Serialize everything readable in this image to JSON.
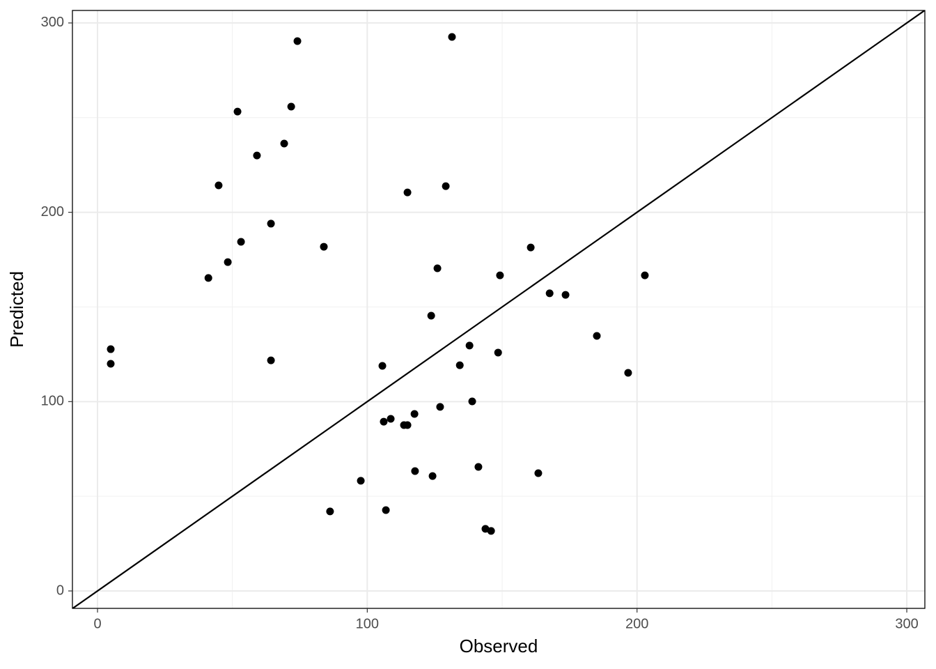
{
  "chart_data": {
    "type": "scatter",
    "x_label": "Observed",
    "y_label": "Predicted",
    "xlim": [
      -9.3,
      306.7
    ],
    "ylim": [
      -9.2,
      306.6
    ],
    "xticks": [
      0,
      100,
      200,
      300
    ],
    "yticks": [
      0,
      100,
      200,
      300
    ],
    "xminor": [
      50,
      150,
      250
    ],
    "yminor": [
      50,
      150,
      250
    ],
    "grid": true,
    "abline": {
      "slope": 1,
      "intercept": 0
    },
    "series": [
      {
        "color": "#000000",
        "x": [
          4.9,
          4.9,
          41.1,
          44.9,
          48.3,
          51.9,
          53.2,
          59.1,
          64.3,
          64.3,
          69.2,
          71.8,
          74.1,
          83.9,
          86.2,
          97.6,
          105.6,
          106.1,
          106.9,
          108.7,
          113.6,
          114.9,
          114.9,
          117.5,
          117.7,
          123.7,
          124.2,
          126.0,
          127.0,
          129.1,
          131.4,
          134.3,
          137.9,
          138.9,
          141.2,
          143.8,
          145.9,
          148.5,
          149.2,
          160.6,
          163.4,
          167.6,
          173.5,
          185.1,
          196.7,
          202.9
        ],
        "values": [
          127.7,
          120.0,
          165.3,
          214.2,
          173.7,
          253.2,
          184.4,
          230.0,
          194.0,
          121.8,
          236.3,
          255.8,
          290.4,
          181.8,
          42.0,
          58.2,
          118.9,
          89.4,
          42.7,
          90.9,
          87.6,
          87.6,
          210.5,
          93.5,
          63.3,
          145.4,
          60.7,
          170.4,
          97.2,
          213.8,
          292.6,
          119.2,
          129.6,
          100.1,
          65.5,
          32.8,
          31.7,
          125.9,
          166.7,
          181.4,
          62.2,
          157.2,
          156.4,
          134.7,
          115.2,
          166.7
        ]
      }
    ]
  }
}
